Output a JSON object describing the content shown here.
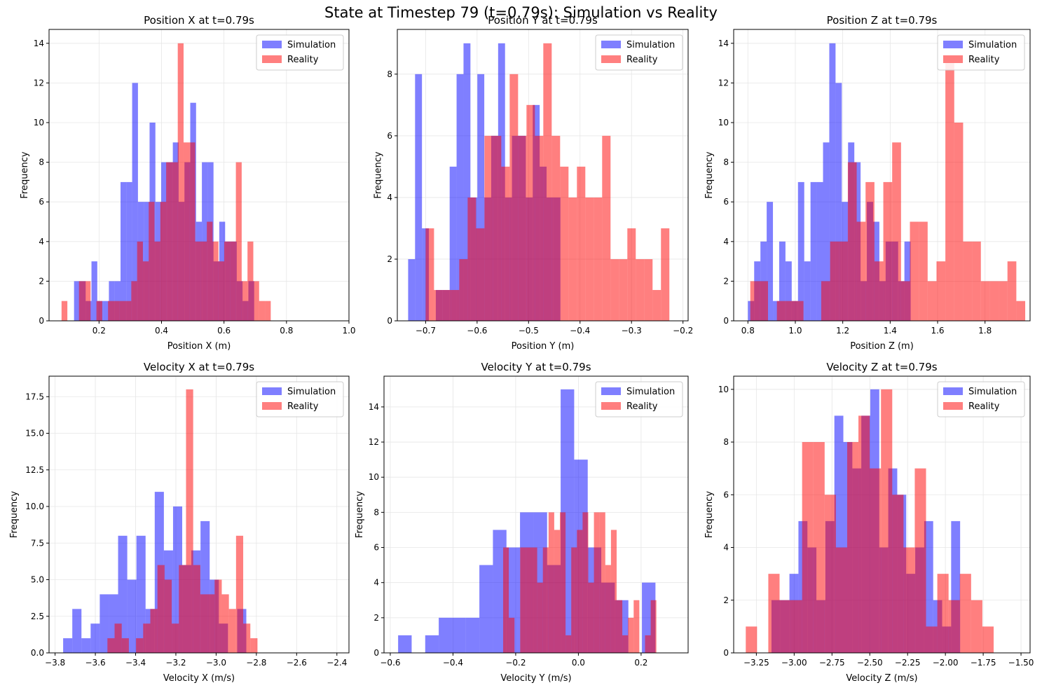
{
  "figure": {
    "title": "State at Timestep 79 (t=0.79s): Simulation vs Reality"
  },
  "colors": {
    "simulation": "#0000ff",
    "reality": "#ff0000",
    "overlap": "#bf3f7f",
    "grid": "#e6e6e6"
  },
  "chart_data": [
    {
      "type": "bar",
      "title": "Position X at t=0.79s",
      "xlabel": "Position X (m)",
      "ylabel": "Frequency",
      "xlim": [
        0.04,
        1.0
      ],
      "ylim": [
        0,
        14.7
      ],
      "xticks": [
        0.2,
        0.4,
        0.6,
        0.8,
        1.0
      ],
      "xtick_labels": [
        "0.2",
        "0.4",
        "0.6",
        "0.8",
        "1.0"
      ],
      "yticks": [
        0,
        2,
        4,
        6,
        8,
        10,
        12,
        14
      ],
      "ytick_labels": [
        "0",
        "2",
        "4",
        "6",
        "8",
        "10",
        "12",
        "14"
      ],
      "grid": true,
      "legend": "top-right",
      "series": [
        {
          "name": "Simulation",
          "bin_start": 0.12,
          "bin_width": 0.0186,
          "values": [
            2,
            2,
            1,
            3,
            1,
            1,
            2,
            2,
            7,
            7,
            12,
            6,
            6,
            10,
            6,
            8,
            8,
            9,
            6,
            8,
            11,
            5,
            8,
            8,
            3,
            5,
            4,
            4,
            2,
            1,
            2
          ]
        },
        {
          "name": "Reality",
          "bin_start": 0.08,
          "bin_width": 0.0186,
          "values": [
            1,
            0,
            0,
            2,
            2,
            0,
            1,
            0,
            1,
            1,
            1,
            1,
            2,
            4,
            3,
            6,
            4,
            6,
            8,
            8,
            14,
            9,
            9,
            4,
            4,
            5,
            4,
            3,
            4,
            4,
            8,
            2,
            4,
            2,
            1,
            1
          ]
        }
      ]
    },
    {
      "type": "bar",
      "title": "Position Y at t=0.79s",
      "xlabel": "Position Y (m)",
      "ylabel": "Frequency",
      "xlim": [
        -0.755,
        -0.19
      ],
      "ylim": [
        0,
        9.45
      ],
      "xticks": [
        -0.7,
        -0.6,
        -0.5,
        -0.4,
        -0.3,
        -0.2
      ],
      "xtick_labels": [
        "−0.7",
        "−0.6",
        "−0.5",
        "−0.4",
        "−0.3",
        "−0.2"
      ],
      "yticks": [
        0,
        2,
        4,
        6,
        8
      ],
      "ytick_labels": [
        "0",
        "2",
        "4",
        "6",
        "8"
      ],
      "grid": true,
      "legend": "top-right",
      "series": [
        {
          "name": "Simulation",
          "bin_start": -0.734,
          "bin_width": 0.01345,
          "values": [
            2,
            8,
            3,
            0,
            1,
            1,
            5,
            8,
            9,
            4,
            8,
            4,
            6,
            9,
            4,
            6,
            6,
            4,
            7,
            5,
            4,
            4,
            0,
            0,
            0,
            0,
            0,
            0,
            0
          ]
        },
        {
          "name": "Reality",
          "bin_start": -0.7,
          "bin_width": 0.01633,
          "values": [
            3,
            1,
            1,
            1,
            2,
            4,
            3,
            6,
            6,
            5,
            8,
            6,
            7,
            6,
            9,
            6,
            5,
            4,
            5,
            4,
            4,
            6,
            2,
            2,
            3,
            2,
            2,
            1,
            3
          ]
        }
      ]
    },
    {
      "type": "bar",
      "title": "Position Z at t=0.79s",
      "xlabel": "Position Z (m)",
      "ylabel": "Frequency",
      "xlim": [
        0.74,
        1.99
      ],
      "ylim": [
        0,
        14.7
      ],
      "xticks": [
        0.8,
        1.0,
        1.2,
        1.4,
        1.6,
        1.8
      ],
      "xtick_labels": [
        "0.8",
        "1.0",
        "1.2",
        "1.4",
        "1.6",
        "1.8"
      ],
      "yticks": [
        0,
        2,
        4,
        6,
        8,
        10,
        12,
        14
      ],
      "ytick_labels": [
        "0",
        "2",
        "4",
        "6",
        "8",
        "10",
        "12",
        "14"
      ],
      "grid": true,
      "legend": "top-right",
      "series": [
        {
          "name": "Simulation",
          "bin_start": 0.8,
          "bin_width": 0.0264,
          "values": [
            1,
            3,
            4,
            6,
            1,
            4,
            3,
            1,
            7,
            3,
            7,
            7,
            9,
            14,
            12,
            6,
            9,
            8,
            2,
            6,
            5,
            2,
            4,
            4,
            2,
            4
          ]
        },
        {
          "name": "Reality",
          "bin_start": 0.81,
          "bin_width": 0.0374,
          "values": [
            2,
            2,
            0,
            1,
            1,
            1,
            0,
            0,
            2,
            4,
            4,
            8,
            5,
            7,
            3,
            7,
            9,
            2,
            5,
            5,
            2,
            3,
            13,
            10,
            4,
            4,
            2,
            2,
            2,
            3,
            1
          ]
        }
      ]
    },
    {
      "type": "bar",
      "title": "Velocity X at t=0.79s",
      "xlabel": "Velocity X (m/s)",
      "ylabel": "Frequency",
      "xlim": [
        -3.83,
        -2.34
      ],
      "ylim": [
        0,
        18.9
      ],
      "xticks": [
        -3.8,
        -3.6,
        -3.4,
        -3.2,
        -3.0,
        -2.8,
        -2.6,
        -2.4
      ],
      "xtick_labels": [
        "−3.8",
        "−3.6",
        "−3.4",
        "−3.2",
        "−3.0",
        "−2.8",
        "−2.6",
        "−2.4"
      ],
      "yticks": [
        0,
        2.5,
        5,
        7.5,
        10,
        12.5,
        15,
        17.5
      ],
      "ytick_labels": [
        "0.0",
        "2.5",
        "5.0",
        "7.5",
        "10.0",
        "12.5",
        "15.0",
        "17.5"
      ],
      "grid": true,
      "legend": "top-right",
      "series": [
        {
          "name": "Simulation",
          "bin_start": -3.76,
          "bin_width": 0.0455,
          "values": [
            1,
            3,
            1,
            2,
            4,
            4,
            8,
            5,
            8,
            3,
            11,
            7,
            10,
            6,
            7,
            9,
            5,
            2,
            0,
            3
          ]
        },
        {
          "name": "Reality",
          "bin_start": -3.54,
          "bin_width": 0.0355,
          "values": [
            1,
            2,
            1,
            0,
            1,
            2,
            3,
            6,
            5,
            2,
            6,
            18,
            6,
            4,
            4,
            5,
            4,
            3,
            8,
            2,
            1
          ]
        }
      ]
    },
    {
      "type": "bar",
      "title": "Velocity Y at t=0.79s",
      "xlabel": "Velocity Y (m/s)",
      "ylabel": "Frequency",
      "xlim": [
        -0.62,
        0.35
      ],
      "ylim": [
        0,
        15.75
      ],
      "xticks": [
        -0.6,
        -0.4,
        -0.2,
        0.0,
        0.2
      ],
      "xtick_labels": [
        "−0.6",
        "−0.4",
        "−0.2",
        "0.0",
        "0.2"
      ],
      "yticks": [
        0,
        2,
        4,
        6,
        8,
        10,
        12,
        14
      ],
      "ytick_labels": [
        "0",
        "2",
        "4",
        "6",
        "8",
        "10",
        "12",
        "14"
      ],
      "grid": true,
      "legend": "top-right",
      "series": [
        {
          "name": "Simulation",
          "bin_start": -0.575,
          "bin_width": 0.0432,
          "values": [
            1,
            0,
            1,
            2,
            2,
            2,
            5,
            7,
            6,
            8,
            8,
            5,
            15,
            11,
            6,
            4,
            3,
            0,
            4
          ]
        },
        {
          "name": "Reality",
          "bin_start": -0.24,
          "bin_width": 0.0181,
          "values": [
            6,
            2,
            0,
            6,
            6,
            6,
            4,
            6,
            8,
            7,
            8,
            1,
            6,
            7,
            8,
            4,
            8,
            8,
            5,
            7,
            3,
            1,
            2,
            3,
            0,
            1,
            3
          ]
        }
      ]
    },
    {
      "type": "bar",
      "title": "Velocity Z at t=0.79s",
      "xlabel": "Velocity Z (m/s)",
      "ylabel": "Frequency",
      "xlim": [
        -3.4,
        -1.44
      ],
      "ylim": [
        0,
        10.5
      ],
      "xticks": [
        -3.25,
        -3.0,
        -2.75,
        -2.5,
        -2.25,
        -2.0,
        -1.75,
        -1.5
      ],
      "xtick_labels": [
        "−3.25",
        "−3.00",
        "−2.75",
        "−2.50",
        "−2.25",
        "−2.00",
        "−1.75",
        "−1.50"
      ],
      "yticks": [
        0,
        2,
        4,
        6,
        8,
        10
      ],
      "ytick_labels": [
        "0",
        "2",
        "4",
        "6",
        "8",
        "10"
      ],
      "grid": true,
      "legend": "top-right",
      "series": [
        {
          "name": "Simulation",
          "bin_start": -3.15,
          "bin_width": 0.0594,
          "values": [
            2,
            2,
            3,
            5,
            4,
            2,
            5,
            9,
            8,
            7,
            9,
            10,
            4,
            7,
            6,
            3,
            4,
            5,
            2,
            1,
            5
          ]
        },
        {
          "name": "Reality",
          "bin_start": -3.32,
          "bin_width": 0.0745,
          "values": [
            1,
            0,
            3,
            2,
            2,
            8,
            8,
            6,
            4,
            8,
            9,
            7,
            10,
            6,
            4,
            7,
            1,
            3,
            2,
            3,
            2,
            1
          ]
        }
      ]
    }
  ]
}
